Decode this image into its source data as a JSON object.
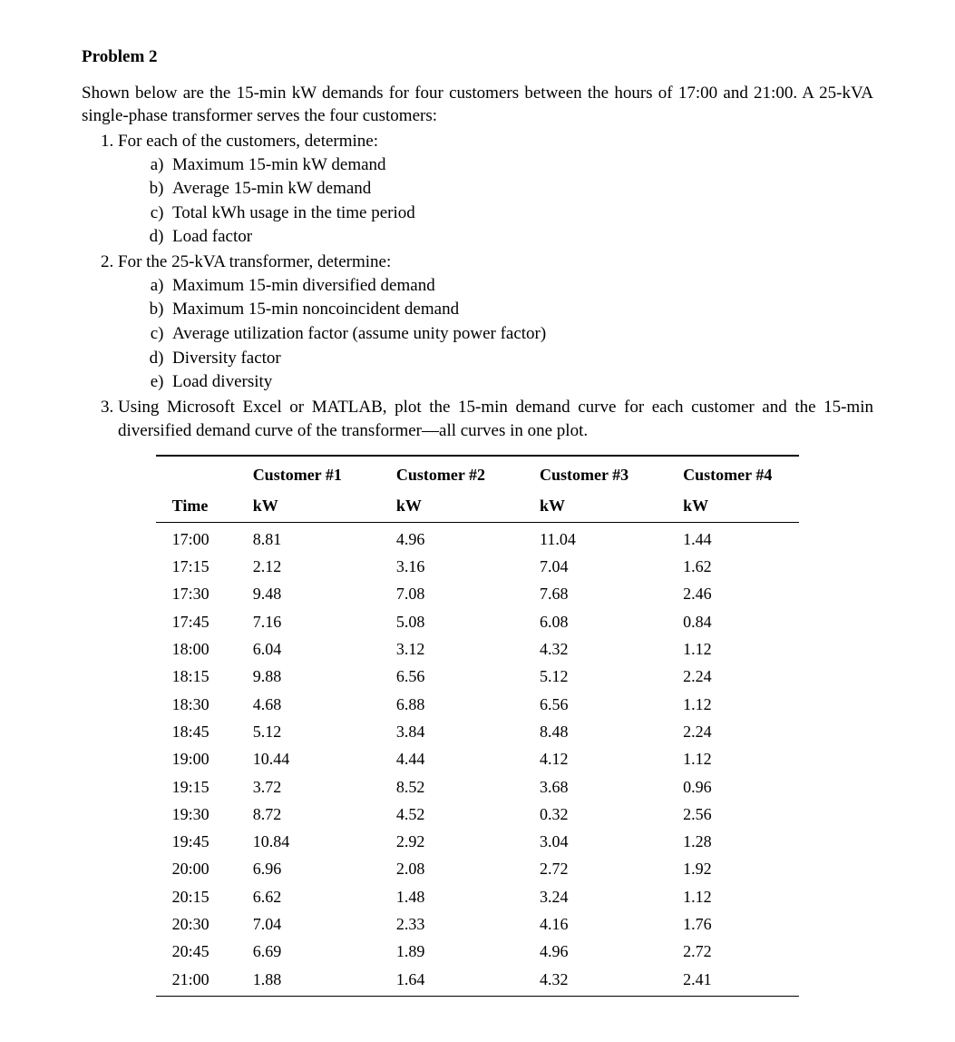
{
  "title": "Problem 2",
  "intro": "Shown below are the 15-min kW demands for four customers between the hours of 17:00 and 21:00. A 25-kVA single-phase transformer serves the four customers:",
  "list": {
    "item1": {
      "text": "For each of the customers, determine:",
      "sub": {
        "a": "Maximum 15-min kW demand",
        "b": "Average 15-min kW demand",
        "c": "Total kWh usage in the time period",
        "d": "Load factor"
      }
    },
    "item2": {
      "text": "For the 25-kVA transformer, determine:",
      "sub": {
        "a": "Maximum 15-min diversified demand",
        "b": "Maximum 15-min noncoincident demand",
        "c": "Average utilization factor (assume unity power factor)",
        "d": "Diversity factor",
        "e": "Load diversity"
      }
    },
    "item3": {
      "text": "Using Microsoft Excel or MATLAB, plot the 15-min demand curve for each customer and the 15-min diversified demand curve of the transformer—all curves in one plot."
    }
  },
  "table": {
    "headers": {
      "time": "Time",
      "c1": "Customer #1",
      "c2": "Customer #2",
      "c3": "Customer #3",
      "c4": "Customer #4",
      "unit": "kW"
    },
    "rows": [
      {
        "t": "17:00",
        "c1": "8.81",
        "c2": "4.96",
        "c3": "11.04",
        "c4": "1.44"
      },
      {
        "t": "17:15",
        "c1": "2.12",
        "c2": "3.16",
        "c3": "7.04",
        "c4": "1.62"
      },
      {
        "t": "17:30",
        "c1": "9.48",
        "c2": "7.08",
        "c3": "7.68",
        "c4": "2.46"
      },
      {
        "t": "17:45",
        "c1": "7.16",
        "c2": "5.08",
        "c3": "6.08",
        "c4": "0.84"
      },
      {
        "t": "18:00",
        "c1": "6.04",
        "c2": "3.12",
        "c3": "4.32",
        "c4": "1.12"
      },
      {
        "t": "18:15",
        "c1": "9.88",
        "c2": "6.56",
        "c3": "5.12",
        "c4": "2.24"
      },
      {
        "t": "18:30",
        "c1": "4.68",
        "c2": "6.88",
        "c3": "6.56",
        "c4": "1.12"
      },
      {
        "t": "18:45",
        "c1": "5.12",
        "c2": "3.84",
        "c3": "8.48",
        "c4": "2.24"
      },
      {
        "t": "19:00",
        "c1": "10.44",
        "c2": "4.44",
        "c3": "4.12",
        "c4": "1.12"
      },
      {
        "t": "19:15",
        "c1": "3.72",
        "c2": "8.52",
        "c3": "3.68",
        "c4": "0.96"
      },
      {
        "t": "19:30",
        "c1": "8.72",
        "c2": "4.52",
        "c3": "0.32",
        "c4": "2.56"
      },
      {
        "t": "19:45",
        "c1": "10.84",
        "c2": "2.92",
        "c3": "3.04",
        "c4": "1.28"
      },
      {
        "t": "20:00",
        "c1": "6.96",
        "c2": "2.08",
        "c3": "2.72",
        "c4": "1.92"
      },
      {
        "t": "20:15",
        "c1": "6.62",
        "c2": "1.48",
        "c3": "3.24",
        "c4": "1.12"
      },
      {
        "t": "20:30",
        "c1": "7.04",
        "c2": "2.33",
        "c3": "4.16",
        "c4": "1.76"
      },
      {
        "t": "20:45",
        "c1": "6.69",
        "c2": "1.89",
        "c3": "4.96",
        "c4": "2.72"
      },
      {
        "t": "21:00",
        "c1": "1.88",
        "c2": "1.64",
        "c3": "4.32",
        "c4": "2.41"
      }
    ]
  }
}
